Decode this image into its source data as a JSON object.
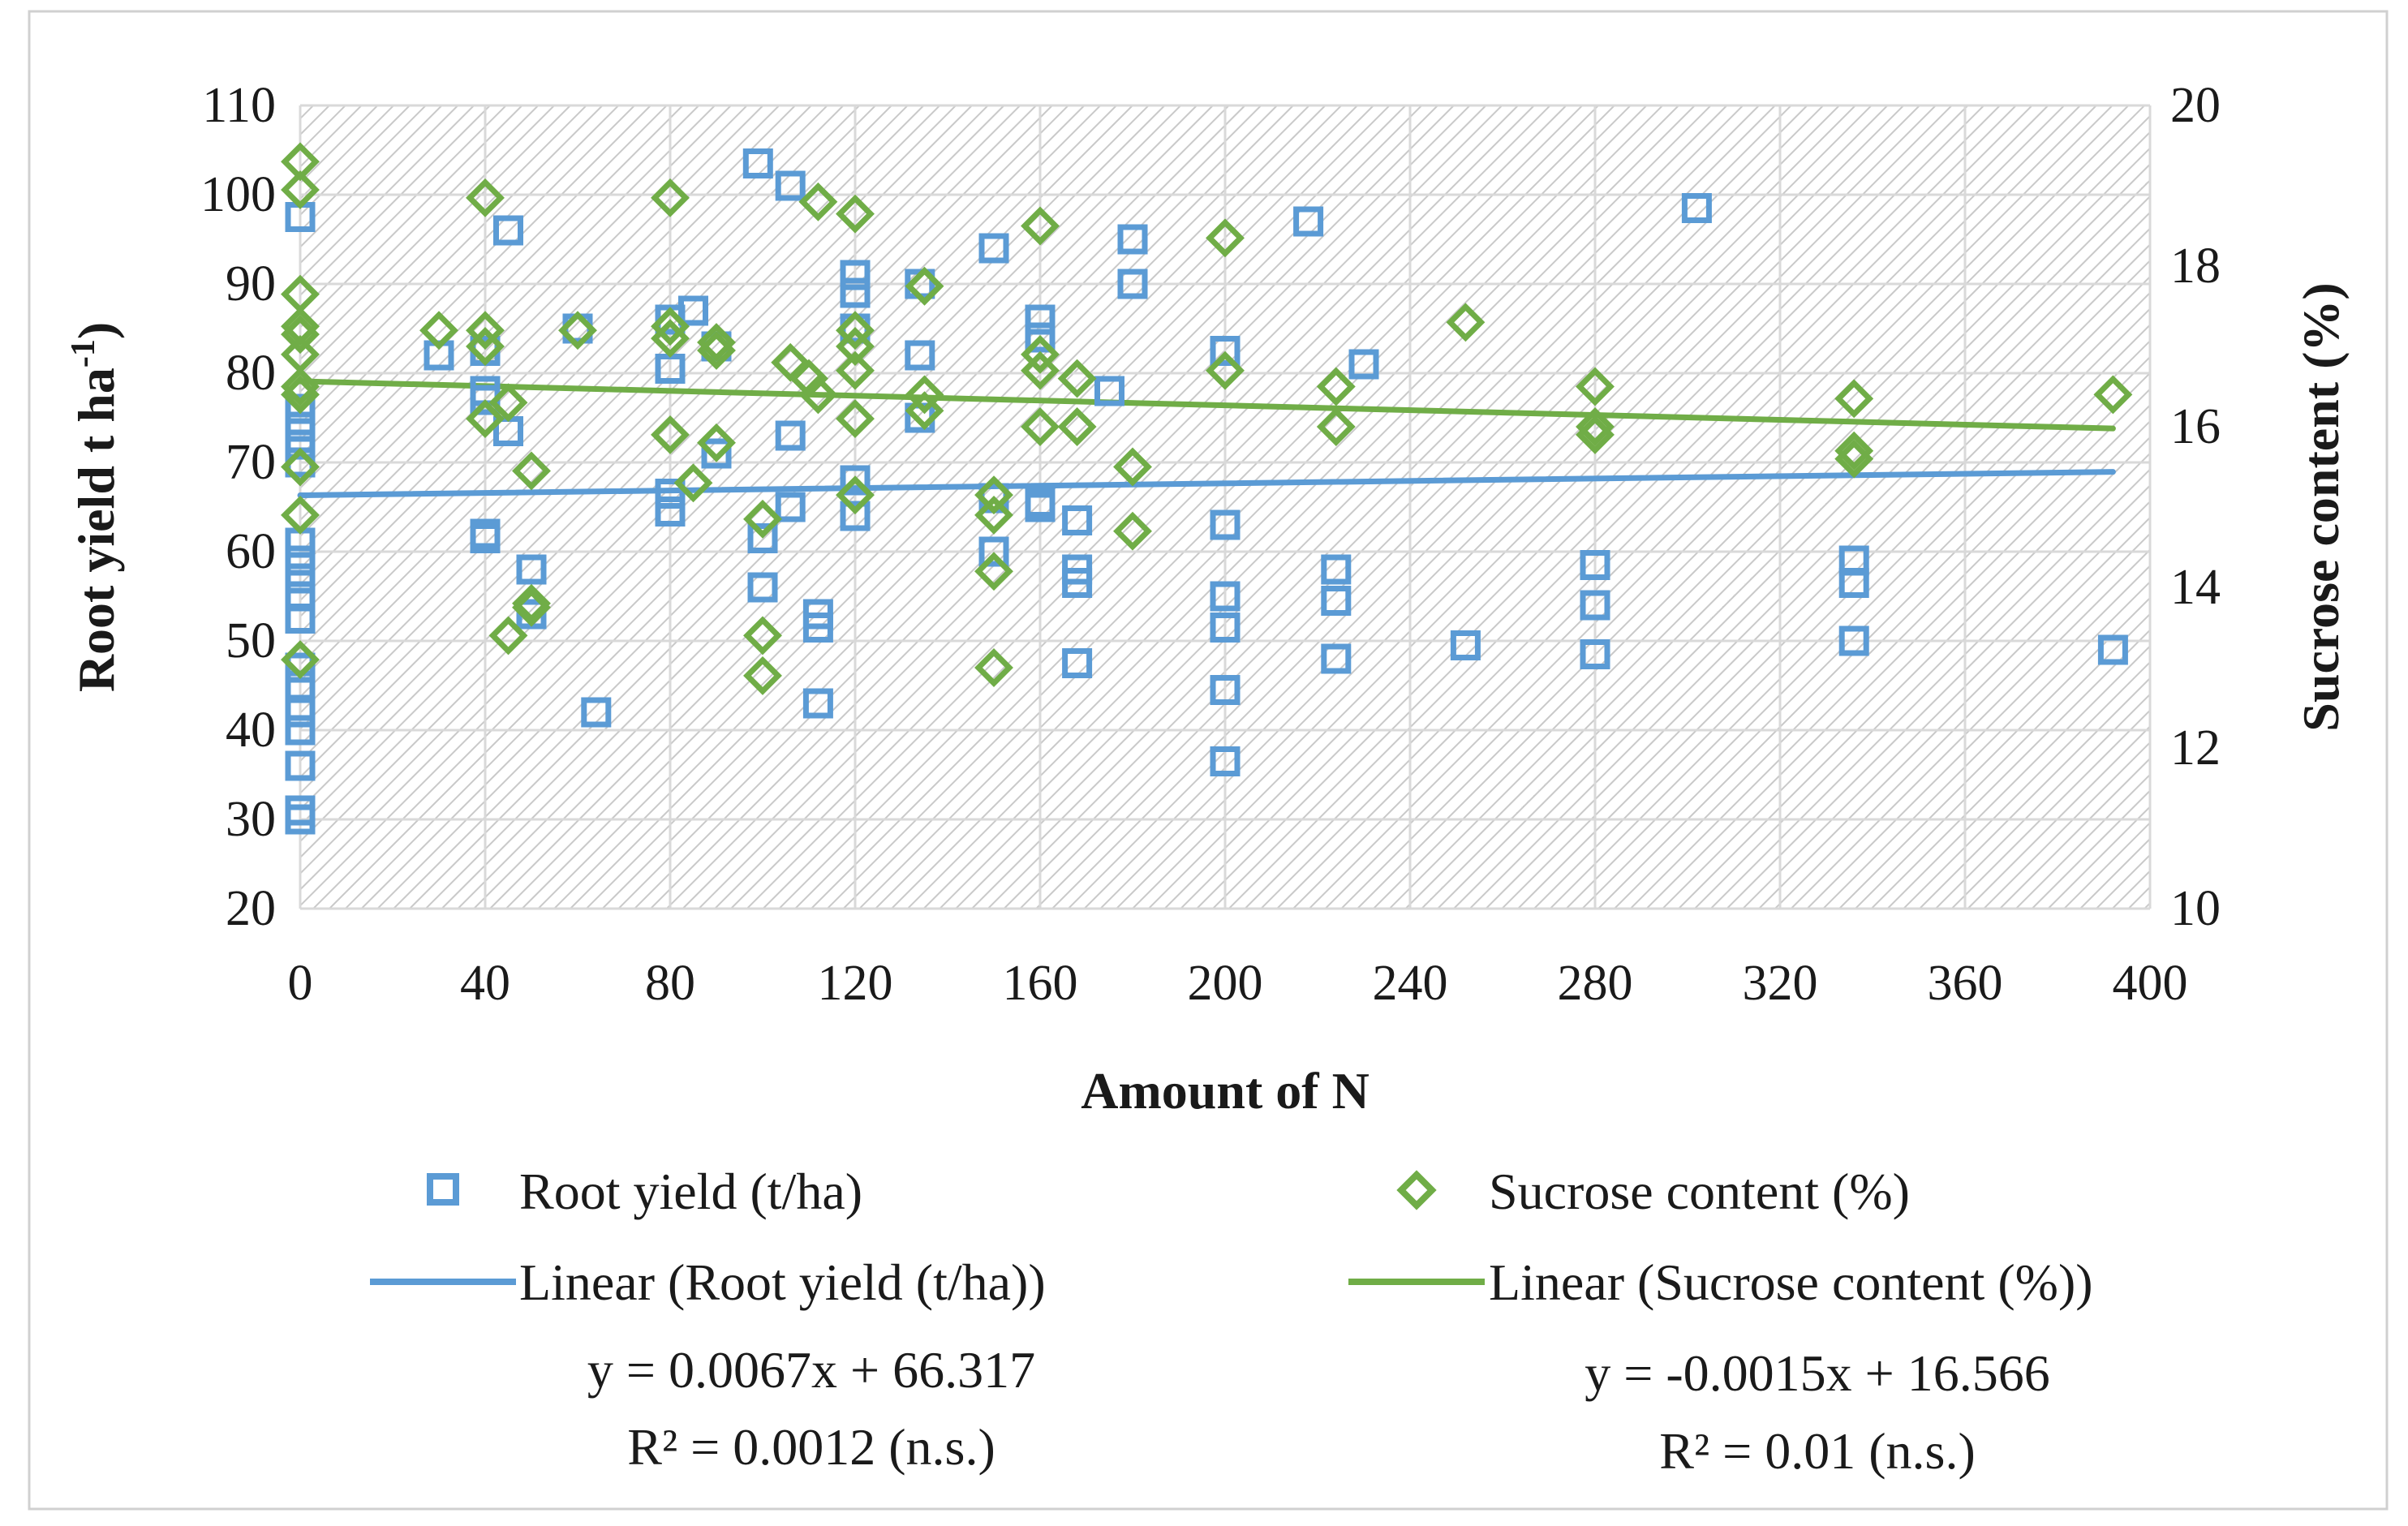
{
  "chart_data": {
    "type": "scatter",
    "xlabel": "Amount of N",
    "ylabel": "Root yield t ha-1",
    "ylabel_parts": {
      "main": "Root yield t ha",
      "sup": "-1",
      "close": ")"
    },
    "y2label": "Sucrose content (%)",
    "xlim": [
      0,
      400
    ],
    "ylim": [
      20,
      110
    ],
    "y2lim": [
      10,
      20
    ],
    "x_ticks": [
      "0",
      "40",
      "80",
      "120",
      "160",
      "200",
      "240",
      "280",
      "320",
      "360",
      "400"
    ],
    "y_ticks": [
      "20",
      "30",
      "40",
      "50",
      "60",
      "70",
      "80",
      "90",
      "100",
      "110"
    ],
    "y2_ticks": [
      "10",
      "12",
      "14",
      "16",
      "18",
      "20"
    ],
    "series": [
      {
        "name": "Root yield (t/ha)",
        "axis": "left",
        "marker": "square",
        "color": "#5b9bd5",
        "points": [
          [
            0,
            97.5
          ],
          [
            0,
            76
          ],
          [
            0,
            74
          ],
          [
            0,
            72
          ],
          [
            0,
            70
          ],
          [
            0,
            61
          ],
          [
            0,
            59
          ],
          [
            0,
            57
          ],
          [
            0,
            55
          ],
          [
            0,
            52.5
          ],
          [
            0,
            47
          ],
          [
            0,
            45
          ],
          [
            0,
            42
          ],
          [
            0,
            40
          ],
          [
            0,
            36
          ],
          [
            0,
            31
          ],
          [
            0,
            30
          ],
          [
            30,
            82
          ],
          [
            40,
            78
          ],
          [
            40,
            77
          ],
          [
            40,
            62
          ],
          [
            40,
            61.5
          ],
          [
            40,
            82.5
          ],
          [
            45,
            96
          ],
          [
            45,
            73.5
          ],
          [
            50,
            58
          ],
          [
            50,
            53
          ],
          [
            60,
            85
          ],
          [
            64,
            42
          ],
          [
            80,
            86
          ],
          [
            80,
            80.5
          ],
          [
            80,
            66.5
          ],
          [
            80,
            64.5
          ],
          [
            85,
            87
          ],
          [
            90,
            83
          ],
          [
            90,
            71
          ],
          [
            99,
            103.5
          ],
          [
            100,
            61.5
          ],
          [
            100,
            56
          ],
          [
            106,
            101
          ],
          [
            106,
            73
          ],
          [
            106,
            65
          ],
          [
            112,
            53
          ],
          [
            112,
            51.5
          ],
          [
            112,
            43
          ],
          [
            120,
            91
          ],
          [
            120,
            89
          ],
          [
            120,
            85
          ],
          [
            120,
            68
          ],
          [
            120,
            64
          ],
          [
            134,
            90
          ],
          [
            134,
            82
          ],
          [
            134,
            75
          ],
          [
            150,
            94
          ],
          [
            150,
            60
          ],
          [
            150,
            66
          ],
          [
            160,
            86
          ],
          [
            160,
            84
          ],
          [
            160,
            65.5
          ],
          [
            160,
            65
          ],
          [
            168,
            63.5
          ],
          [
            168,
            58
          ],
          [
            168,
            56.5
          ],
          [
            168,
            47.5
          ],
          [
            175,
            78
          ],
          [
            180,
            95
          ],
          [
            180,
            90
          ],
          [
            200,
            82.5
          ],
          [
            200,
            63
          ],
          [
            200,
            55
          ],
          [
            200,
            51.5
          ],
          [
            200,
            44.5
          ],
          [
            200,
            36.5
          ],
          [
            218,
            97
          ],
          [
            224,
            58
          ],
          [
            224,
            54.5
          ],
          [
            224,
            48
          ],
          [
            230,
            81
          ],
          [
            252,
            49.5
          ],
          [
            280,
            58.5
          ],
          [
            280,
            54
          ],
          [
            280,
            48.5
          ],
          [
            302,
            98.5
          ],
          [
            336,
            59
          ],
          [
            336,
            56.5
          ],
          [
            336,
            50
          ],
          [
            392,
            49
          ]
        ]
      },
      {
        "name": "Sucrose content (%)",
        "axis": "right",
        "marker": "diamond",
        "color": "#70ad47",
        "points": [
          [
            0,
            19.3
          ],
          [
            0,
            18.95
          ],
          [
            0,
            17.65
          ],
          [
            0,
            17.25
          ],
          [
            0,
            17.15
          ],
          [
            0,
            16.9
          ],
          [
            0,
            16.5
          ],
          [
            0,
            16.4
          ],
          [
            0,
            15.5
          ],
          [
            0,
            14.9
          ],
          [
            0,
            13.1
          ],
          [
            30,
            17.2
          ],
          [
            40,
            18.85
          ],
          [
            40,
            17.2
          ],
          [
            40,
            17.0
          ],
          [
            40,
            16.1
          ],
          [
            45,
            16.3
          ],
          [
            45,
            13.4
          ],
          [
            50,
            15.45
          ],
          [
            50,
            13.8
          ],
          [
            50,
            13.75
          ],
          [
            60,
            17.2
          ],
          [
            80,
            18.85
          ],
          [
            80,
            17.25
          ],
          [
            80,
            17.1
          ],
          [
            80,
            15.9
          ],
          [
            85,
            15.3
          ],
          [
            90,
            17.05
          ],
          [
            90,
            16.95
          ],
          [
            90,
            15.8
          ],
          [
            100,
            14.85
          ],
          [
            100,
            13.4
          ],
          [
            100,
            12.9
          ],
          [
            106,
            16.8
          ],
          [
            110,
            16.6
          ],
          [
            112,
            18.8
          ],
          [
            112,
            16.4
          ],
          [
            120,
            18.65
          ],
          [
            120,
            17.2
          ],
          [
            120,
            17.0
          ],
          [
            120,
            16.7
          ],
          [
            120,
            16.1
          ],
          [
            120,
            15.15
          ],
          [
            135,
            17.75
          ],
          [
            135,
            16.4
          ],
          [
            135,
            16.2
          ],
          [
            150,
            15.15
          ],
          [
            150,
            14.9
          ],
          [
            150,
            14.2
          ],
          [
            150,
            13.0
          ],
          [
            160,
            18.5
          ],
          [
            160,
            16.9
          ],
          [
            160,
            16.7
          ],
          [
            160,
            16.0
          ],
          [
            168,
            16.6
          ],
          [
            168,
            16.0
          ],
          [
            180,
            15.5
          ],
          [
            180,
            14.7
          ],
          [
            200,
            18.35
          ],
          [
            200,
            16.7
          ],
          [
            224,
            16.5
          ],
          [
            224,
            16.0
          ],
          [
            252,
            17.3
          ],
          [
            280,
            16.5
          ],
          [
            280,
            16.0
          ],
          [
            280,
            15.9
          ],
          [
            336,
            16.35
          ],
          [
            336,
            15.7
          ],
          [
            336,
            15.6
          ],
          [
            392,
            16.4
          ]
        ]
      }
    ],
    "trendlines": [
      {
        "name": "Linear (Root yield (t/ha))",
        "of_series": "Root yield (t/ha)",
        "axis": "left",
        "slope": 0.0067,
        "intercept": 66.317,
        "x_range": [
          0,
          392
        ],
        "color": "#5b9bd5",
        "equation": "y = 0.0067x + 66.317",
        "r2": "R² = 0.0012 (n.s.)"
      },
      {
        "name": "Linear (Sucrose content (%))",
        "of_series": "Sucrose content (%)",
        "axis": "right",
        "slope": -0.0015,
        "intercept": 16.566,
        "x_range": [
          0,
          392
        ],
        "color": "#70ad47",
        "equation": "y = -0.0015x + 16.566",
        "r2": "R² = 0.01 (n.s.)"
      }
    ],
    "grid": true,
    "legend": "bottom"
  }
}
